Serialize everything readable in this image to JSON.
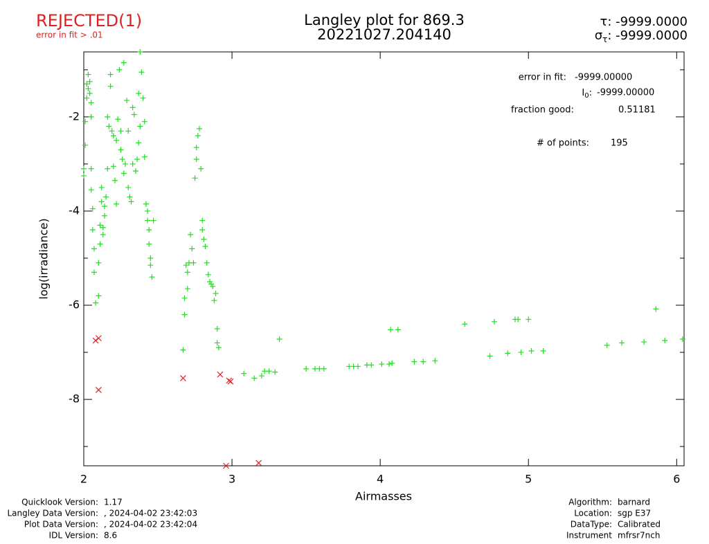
{
  "status": {
    "text": "REJECTED(1)",
    "reason": "error in fit > .01"
  },
  "stats": {
    "tau_symbol": "τ:",
    "tau": "-9999.0000",
    "sigma_symbol": "σ",
    "sigma_sub": "τ",
    "sigma_colon": ":",
    "sigma": "-9999.0000",
    "error_label": "error in fit:",
    "error_value": "-9999.00000",
    "i0_symbol": "I",
    "i0_sub": "0",
    "i0_colon": ":",
    "i0_value": "-9999.00000",
    "fraction_label": "fraction good:",
    "fraction_value": "0.51181",
    "points_label": "# of points:",
    "points_value": "195"
  },
  "footer": {
    "left": [
      {
        "label": "Quicklook Version:",
        "value": "1.17"
      },
      {
        "label": "Langley Data Version:",
        "value": ", 2024-04-02 23:42:03"
      },
      {
        "label": "Plot Data Version:",
        "value": ", 2024-04-02 23:42:04"
      },
      {
        "label": "IDL Version:",
        "value": "8.6"
      }
    ],
    "right": [
      {
        "label": "Algorithm:",
        "value": "barnard"
      },
      {
        "label": "Location:",
        "value": "sgp E37"
      },
      {
        "label": "DataType:",
        "value": "Calibrated"
      },
      {
        "label": "Instrument",
        "value": "mfrsr7nch"
      }
    ]
  },
  "chart_data": {
    "type": "scatter",
    "title": "Langley plot for 869.3",
    "subtitle": "20221027.204140",
    "x_label": "Airmasses",
    "y_label": "log(irradiance)",
    "xlim": [
      2,
      6.05
    ],
    "ylim": [
      -9.41,
      -0.62
    ],
    "xticks": [
      2,
      3,
      4,
      5,
      6
    ],
    "yticks": [
      -8,
      -6,
      -4,
      -2
    ],
    "y_minor_ticks": [
      -9,
      -7,
      -5,
      -3,
      -1
    ],
    "series": [
      {
        "color": "#22dd22",
        "marker": "plus",
        "x": [
          2.0,
          2.0,
          2.01,
          2.01,
          2.02,
          2.02,
          2.03,
          2.03,
          2.04,
          2.04,
          2.05,
          2.05,
          2.05,
          2.05,
          2.06,
          2.06,
          2.07,
          2.07,
          2.08,
          2.1,
          2.1,
          2.11,
          2.11,
          2.12,
          2.12,
          2.13,
          2.13,
          2.14,
          2.14,
          2.15,
          2.16,
          2.16,
          2.17,
          2.18,
          2.18,
          2.19,
          2.2,
          2.2,
          2.21,
          2.22,
          2.22,
          2.23,
          2.24,
          2.25,
          2.25,
          2.26,
          2.27,
          2.27,
          2.28,
          2.29,
          2.3,
          2.3,
          2.31,
          2.32,
          2.33,
          2.33,
          2.34,
          2.35,
          2.36,
          2.37,
          2.37,
          2.38,
          2.38,
          2.39,
          2.4,
          2.41,
          2.41,
          2.42,
          2.43,
          2.43,
          2.44,
          2.44,
          2.45,
          2.45,
          2.46,
          2.47,
          2.67,
          2.68,
          2.68,
          2.69,
          2.7,
          2.7,
          2.71,
          2.72,
          2.73,
          2.74,
          2.75,
          2.76,
          2.76,
          2.77,
          2.78,
          2.79,
          2.8,
          2.8,
          2.81,
          2.82,
          2.83,
          2.84,
          2.85,
          2.86,
          2.87,
          2.88,
          2.89,
          2.9,
          2.9,
          2.91,
          3.08,
          3.15,
          3.2,
          3.22,
          3.25,
          3.29,
          3.32,
          3.5,
          3.56,
          3.59,
          3.62,
          3.79,
          3.82,
          3.85,
          3.91,
          3.94,
          4.01,
          4.06,
          4.08,
          4.07,
          4.12,
          4.23,
          4.29,
          4.37,
          4.57,
          4.74,
          4.77,
          4.86,
          4.91,
          4.93,
          4.95,
          5.0,
          5.02,
          5.1,
          5.53,
          5.63,
          5.78,
          5.86,
          5.92,
          6.04
        ],
        "values": [
          -3.1,
          -3.25,
          -2.6,
          -2.1,
          -1.6,
          -1.3,
          -1.1,
          -1.4,
          -1.25,
          -1.5,
          -1.7,
          -2.0,
          -3.1,
          -3.55,
          -3.95,
          -4.4,
          -4.8,
          -5.3,
          -5.95,
          -5.8,
          -5.1,
          -4.7,
          -4.3,
          -3.8,
          -3.5,
          -4.5,
          -4.35,
          -4.1,
          -3.9,
          -3.7,
          -3.1,
          -2.0,
          -2.2,
          -1.35,
          -1.1,
          -2.3,
          -3.05,
          -2.4,
          -3.35,
          -2.5,
          -3.85,
          -2.05,
          -1.0,
          -2.7,
          -2.3,
          -2.9,
          -3.2,
          -0.85,
          -3.0,
          -1.65,
          -2.3,
          -3.5,
          -3.7,
          -3.8,
          -1.8,
          -3.0,
          -1.95,
          -3.15,
          -2.9,
          -2.55,
          -1.5,
          -2.2,
          -0.62,
          -1.05,
          -1.6,
          -2.1,
          -2.85,
          -3.85,
          -4.0,
          -4.2,
          -4.4,
          -4.7,
          -5.0,
          -5.15,
          -5.4,
          -4.2,
          -6.95,
          -6.2,
          -5.85,
          -5.15,
          -5.3,
          -5.65,
          -5.1,
          -4.5,
          -4.8,
          -5.1,
          -3.3,
          -2.9,
          -2.65,
          -2.4,
          -2.25,
          -3.1,
          -4.2,
          -4.4,
          -4.6,
          -4.75,
          -5.1,
          -5.35,
          -5.5,
          -5.55,
          -5.6,
          -5.9,
          -5.75,
          -6.5,
          -6.8,
          -6.9,
          -7.45,
          -7.55,
          -7.5,
          -7.4,
          -7.4,
          -7.42,
          -6.72,
          -7.35,
          -7.35,
          -7.35,
          -7.35,
          -7.3,
          -7.3,
          -7.3,
          -7.27,
          -7.27,
          -7.25,
          -7.25,
          -7.23,
          -6.52,
          -6.52,
          -7.2,
          -7.2,
          -7.18,
          -6.4,
          -7.08,
          -6.35,
          -7.02,
          -6.3,
          -6.3,
          -7.0,
          -6.3,
          -6.97,
          -6.97,
          -6.85,
          -6.8,
          -6.78,
          -6.08,
          -6.75,
          -6.72
        ]
      },
      {
        "color": "#e02020",
        "marker": "cross",
        "x": [
          2.08,
          2.1,
          2.1,
          2.67,
          2.92,
          2.98,
          2.99,
          2.96,
          3.18
        ],
        "values": [
          -6.75,
          -6.7,
          -7.8,
          -7.55,
          -7.47,
          -7.6,
          -7.62,
          -9.41,
          -9.35
        ]
      }
    ]
  }
}
